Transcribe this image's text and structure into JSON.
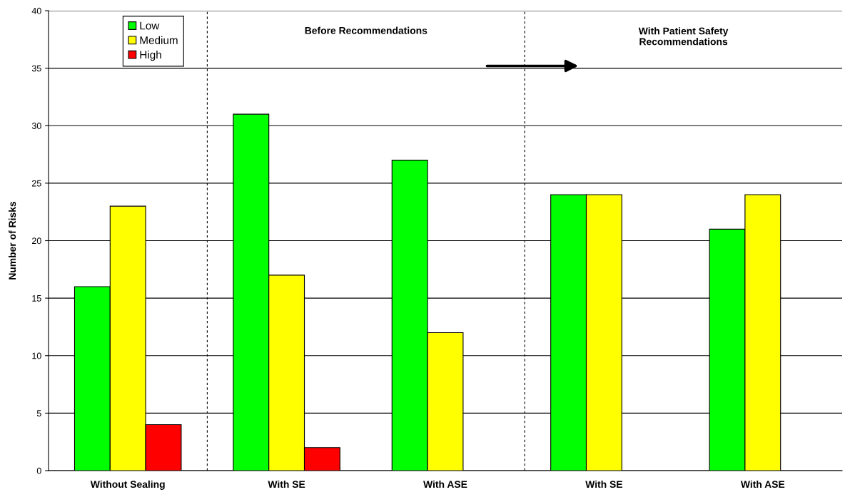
{
  "chart_data": {
    "type": "bar",
    "ylabel": "Number of Risks",
    "categories": [
      "Without Sealing",
      "With SE",
      "With ASE",
      "With SE",
      "With ASE"
    ],
    "series": [
      {
        "name": "Low",
        "color": "#00ff00",
        "values": [
          16,
          31,
          27,
          24,
          21
        ]
      },
      {
        "name": "Medium",
        "color": "#ffff00",
        "values": [
          23,
          17,
          12,
          24,
          24
        ]
      },
      {
        "name": "High",
        "color": "#ff0000",
        "values": [
          4,
          2,
          null,
          null,
          null
        ]
      }
    ],
    "ylim": [
      0,
      40
    ],
    "yticks": [
      0,
      5,
      10,
      15,
      20,
      25,
      30,
      35,
      40
    ],
    "grid": "y",
    "legend": "top left",
    "annotations": [
      "Before Recommendations",
      "With Patient Safety\nRecommendations"
    ]
  }
}
